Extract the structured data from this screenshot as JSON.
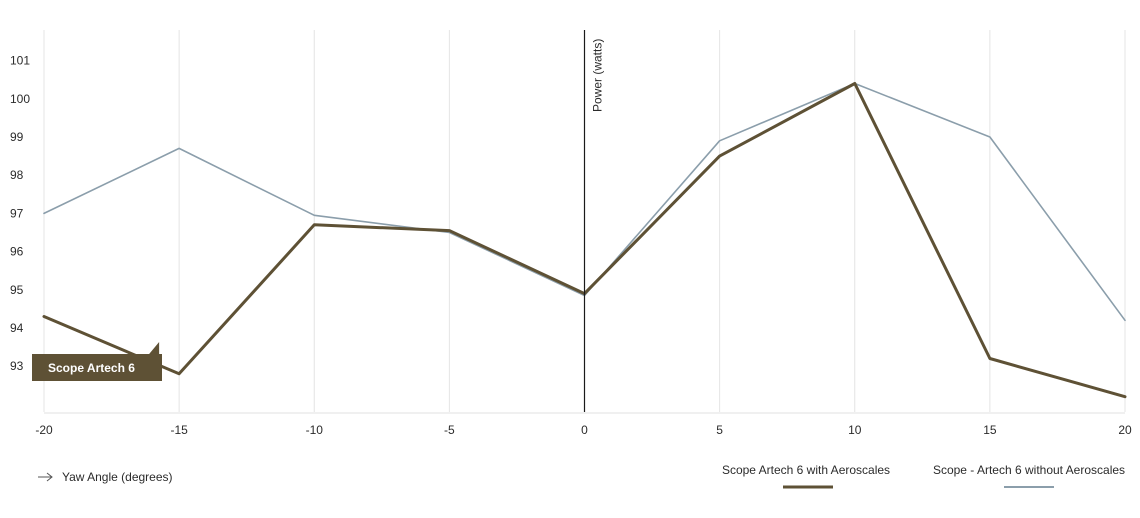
{
  "chart_data": {
    "type": "line",
    "x": [
      -20,
      -15,
      -10,
      -5,
      0,
      5,
      10,
      15,
      20
    ],
    "xlim": [
      -20,
      20
    ],
    "ylim": [
      91.8,
      101.8
    ],
    "x_ticks": [
      -20,
      -15,
      -10,
      -5,
      0,
      5,
      10,
      15,
      20
    ],
    "y_ticks": [
      93,
      94,
      95,
      96,
      97,
      98,
      99,
      100,
      101
    ],
    "xlabel": "Yaw Angle (degrees)",
    "ylabel": "Power (watts)",
    "grid": "vertical",
    "legend_position": "bottom-right",
    "series": [
      {
        "name": "Scope Artech 6 with Aeroscales",
        "color": "#5e5135",
        "values": [
          94.3,
          92.8,
          96.7,
          96.55,
          94.9,
          98.5,
          100.4,
          93.2,
          92.2
        ]
      },
      {
        "name": "Scope - Artech 6 without Aeroscales",
        "color": "#8b9eab",
        "values": [
          97.0,
          98.7,
          96.95,
          96.5,
          94.85,
          98.9,
          100.4,
          99.0,
          94.2
        ]
      }
    ],
    "annotation": {
      "text": "Scope Artech 6",
      "x": -15,
      "color": "#5e5135"
    }
  },
  "colors": {
    "grid": "#e4e4e4",
    "axis": "#1a1a1a",
    "baseline": "#e0e0e0",
    "text": "#2b2b2b"
  }
}
